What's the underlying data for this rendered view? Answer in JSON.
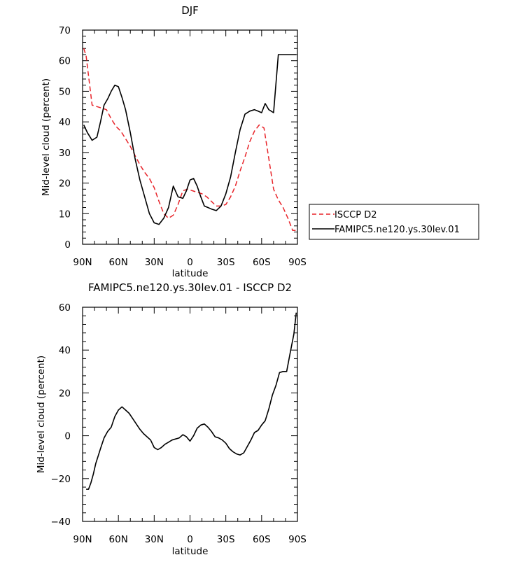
{
  "chart_data": [
    {
      "type": "line",
      "title": "DJF",
      "xlabel": "latitude",
      "ylabel": "Mid-level cloud (percent)",
      "xlim": [
        90,
        -90
      ],
      "ylim": [
        0,
        70
      ],
      "x_ticks": [
        90,
        60,
        30,
        0,
        -30,
        -60,
        -90
      ],
      "x_tick_labels": [
        "90N",
        "60N",
        "30N",
        "0",
        "30S",
        "60S",
        "90S"
      ],
      "y_ticks": [
        0,
        10,
        20,
        30,
        40,
        50,
        60,
        70
      ],
      "y_tick_labels": [
        "0",
        "10",
        "20",
        "30",
        "40",
        "50",
        "60",
        "70"
      ],
      "legend_position": "right",
      "series": [
        {
          "name": "ISCCP D2",
          "color": "#e8242a",
          "dash": "dashed",
          "x": [
            89,
            87,
            82,
            78,
            74,
            70,
            66,
            62,
            58,
            54,
            50,
            46,
            42,
            38,
            34,
            30,
            26,
            22,
            18,
            14,
            10,
            6,
            2,
            -2,
            -6,
            -10,
            -14,
            -18,
            -22,
            -26,
            -30,
            -34,
            -38,
            -42,
            -46,
            -50,
            -54,
            -58,
            -62,
            -66,
            -70,
            -74,
            -78,
            -82,
            -86,
            -89
          ],
          "y": [
            64,
            61.5,
            45.5,
            45,
            44.5,
            44,
            41,
            38.5,
            37,
            34.5,
            32,
            29,
            26,
            23.5,
            21.5,
            18.5,
            14,
            10,
            8.5,
            9.5,
            13,
            17.5,
            18,
            17.5,
            17,
            16.5,
            15.5,
            14,
            12.5,
            12.5,
            13,
            15.5,
            19,
            24,
            28.5,
            33.5,
            37,
            39,
            38,
            28,
            18,
            14.5,
            12,
            8.5,
            4.5,
            4.5
          ]
        },
        {
          "name": "FAMIPC5.ne120.ys.30lev.01",
          "color": "#000000",
          "dash": "solid",
          "x": [
            89,
            86,
            82,
            78,
            75,
            72,
            69,
            66,
            63,
            60,
            57,
            54,
            50,
            46,
            42,
            38,
            34,
            30,
            26,
            22,
            18,
            14,
            10,
            6,
            3,
            0,
            -3,
            -6,
            -9,
            -12,
            -15,
            -18,
            -22,
            -26,
            -30,
            -34,
            -38,
            -42,
            -46,
            -50,
            -54,
            -57,
            -60,
            -63,
            -66,
            -70,
            -74,
            -78,
            -82,
            -86,
            -89
          ],
          "y": [
            39,
            36.5,
            34,
            35,
            40,
            45.5,
            47.5,
            50,
            52,
            51.5,
            48,
            44,
            36.5,
            28,
            21,
            15.5,
            10,
            7,
            6.5,
            8.5,
            12,
            19,
            15.5,
            15,
            17.5,
            21,
            21.5,
            19,
            15.5,
            12.5,
            12,
            11.5,
            11,
            12.5,
            16.5,
            22,
            30,
            37.5,
            42.5,
            43.5,
            44,
            43.5,
            43,
            46,
            44,
            43,
            62,
            62,
            62,
            62,
            62
          ]
        }
      ]
    },
    {
      "type": "line",
      "title": "FAMIPC5.ne120.ys.30lev.01 - ISCCP D2",
      "xlabel": "latitude",
      "ylabel": "Mid-level cloud (percent)",
      "xlim": [
        90,
        -90
      ],
      "ylim": [
        -40,
        60
      ],
      "x_ticks": [
        90,
        60,
        30,
        0,
        -30,
        -60,
        -90
      ],
      "x_tick_labels": [
        "90N",
        "60N",
        "30N",
        "0",
        "30S",
        "60S",
        "90S"
      ],
      "y_ticks": [
        -40,
        -20,
        0,
        20,
        40,
        60
      ],
      "y_tick_labels": [
        "−40",
        "−20",
        "0",
        "20",
        "40",
        "60"
      ],
      "series": [
        {
          "color": "#000000",
          "dash": "solid",
          "x": [
            87,
            85,
            83,
            81,
            79,
            77,
            75,
            72,
            69,
            66,
            63,
            60,
            57,
            54,
            51,
            48,
            45,
            42,
            39,
            36,
            33,
            30,
            27,
            24,
            21,
            18,
            15,
            12,
            9,
            6,
            3,
            0,
            -3,
            -6,
            -9,
            -12,
            -15,
            -18,
            -21,
            -24,
            -27,
            -30,
            -33,
            -36,
            -39,
            -42,
            -45,
            -48,
            -51,
            -54,
            -57,
            -60,
            -63,
            -66,
            -69,
            -72,
            -75,
            -78,
            -81,
            -84,
            -87,
            -89
          ],
          "y": [
            -25,
            -25,
            -22,
            -18,
            -13,
            -9.5,
            -6,
            -1,
            2,
            4,
            9,
            12,
            13.5,
            12,
            10.5,
            8,
            5.5,
            3,
            1,
            -0.5,
            -2,
            -5.5,
            -6.5,
            -5.5,
            -4,
            -3,
            -2,
            -1.5,
            -1,
            0.5,
            -0.5,
            -2.5,
            0,
            3.5,
            5,
            5.5,
            4,
            2,
            -0.5,
            -1,
            -2,
            -3.5,
            -6,
            -7.5,
            -8.5,
            -9,
            -8,
            -5,
            -2,
            1.5,
            2.5,
            5,
            7,
            12.5,
            19,
            23.5,
            29.5,
            30,
            30,
            39,
            47.5,
            57.5
          ]
        }
      ]
    }
  ]
}
